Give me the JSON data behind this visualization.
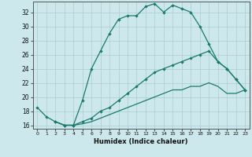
{
  "xlabel": "Humidex (Indice chaleur)",
  "bg_color": "#cce8ec",
  "grid_color": "#aacccc",
  "line_color": "#1a7a6e",
  "xlim": [
    -0.5,
    23.5
  ],
  "ylim": [
    15.5,
    33.5
  ],
  "xticks": [
    0,
    1,
    2,
    3,
    4,
    5,
    6,
    7,
    8,
    9,
    10,
    11,
    12,
    13,
    14,
    15,
    16,
    17,
    18,
    19,
    20,
    21,
    22,
    23
  ],
  "yticks": [
    16,
    18,
    20,
    22,
    24,
    26,
    28,
    30,
    32
  ],
  "line1_x": [
    0,
    1,
    2,
    3,
    4,
    5,
    6,
    7,
    8,
    9,
    10,
    11,
    12,
    13,
    14,
    15,
    16,
    17,
    18,
    19,
    20,
    21,
    22,
    23
  ],
  "line1_y": [
    18.5,
    17.2,
    16.5,
    16.0,
    16.0,
    19.5,
    24.0,
    26.5,
    29.0,
    31.0,
    31.5,
    31.5,
    32.8,
    33.2,
    32.0,
    33.0,
    32.5,
    32.0,
    30.0,
    27.5,
    25.0,
    24.0,
    22.5,
    21.0
  ],
  "line2_x": [
    2,
    3,
    4,
    5,
    6,
    7,
    8,
    9,
    10,
    11,
    12,
    13,
    14,
    15,
    16,
    17,
    18,
    19,
    20,
    21,
    22,
    23
  ],
  "line2_y": [
    16.5,
    16.0,
    16.0,
    16.5,
    17.0,
    18.0,
    18.5,
    19.5,
    20.5,
    21.5,
    22.5,
    23.5,
    24.0,
    24.5,
    25.0,
    25.5,
    26.0,
    26.5,
    25.0,
    24.0,
    22.5,
    21.0
  ],
  "line3_x": [
    2,
    3,
    4,
    5,
    6,
    7,
    8,
    9,
    10,
    11,
    12,
    13,
    14,
    15,
    16,
    17,
    18,
    19,
    20,
    21,
    22,
    23
  ],
  "line3_y": [
    16.5,
    16.0,
    16.0,
    16.2,
    16.5,
    17.0,
    17.5,
    18.0,
    18.5,
    19.0,
    19.5,
    20.0,
    20.5,
    21.0,
    21.0,
    21.5,
    21.5,
    22.0,
    21.5,
    20.5,
    20.5,
    21.0
  ]
}
